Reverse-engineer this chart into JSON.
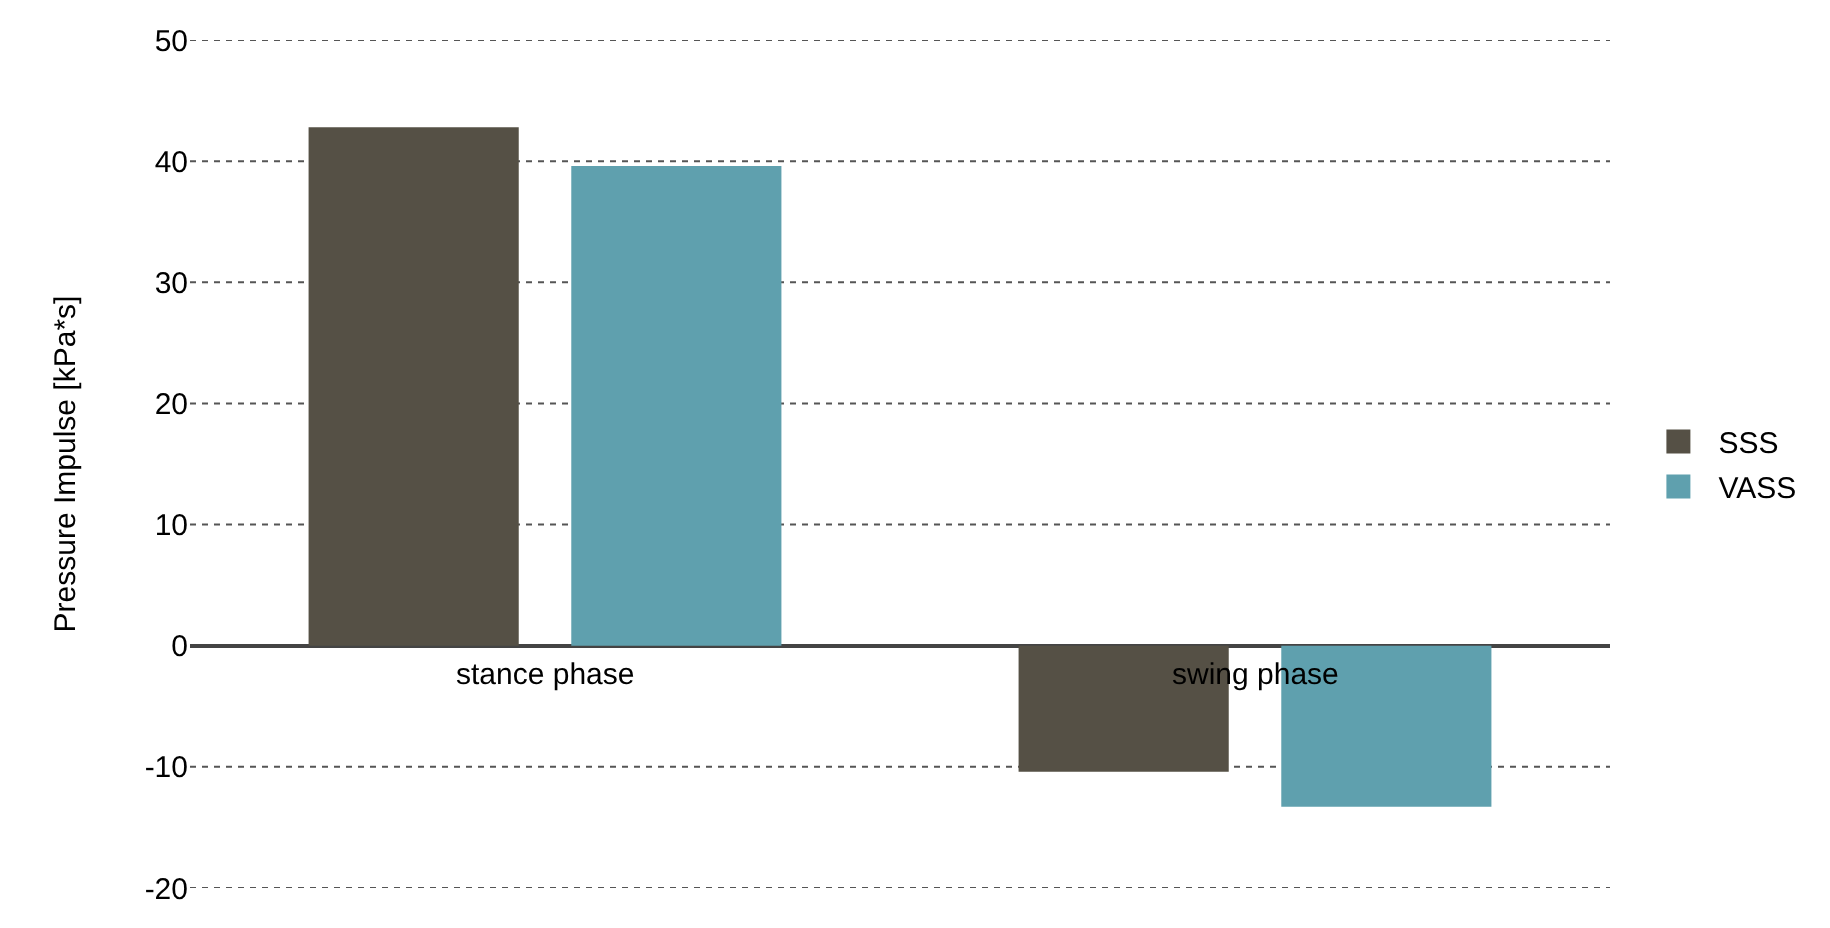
{
  "chart_data": {
    "type": "bar",
    "ylabel": "Pressure Impulse [kPa*s]",
    "categories": [
      "stance phase",
      "swing phase"
    ],
    "series": [
      {
        "name": "SSS",
        "color": "#555045",
        "values": [
          42.8,
          -10.4
        ]
      },
      {
        "name": "VASS",
        "color": "#5fa0ae",
        "values": [
          39.6,
          -13.3
        ]
      }
    ],
    "ylim": [
      -20,
      50
    ],
    "yticks": [
      -20,
      -10,
      0,
      10,
      20,
      30,
      40,
      50
    ],
    "grid": "y",
    "legend": "right"
  }
}
